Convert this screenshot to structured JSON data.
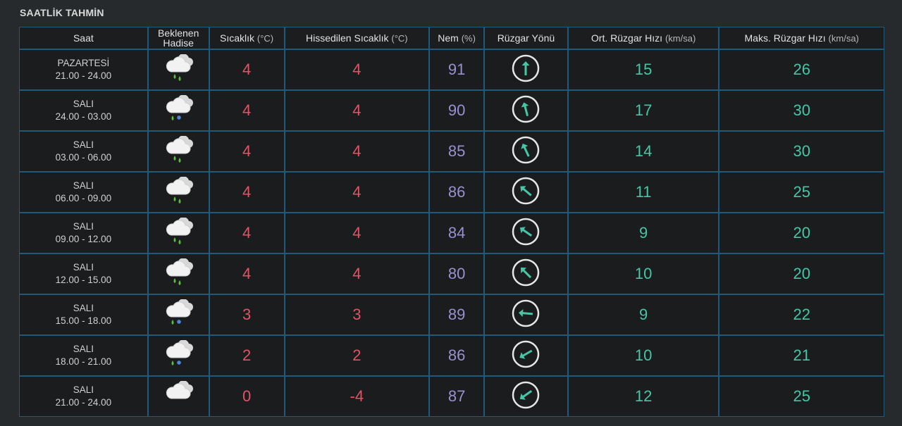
{
  "section_title": "SAATLİK TAHMİN",
  "columns": {
    "time": "Saat",
    "event_line1": "Beklenen",
    "event_line2": "Hadise",
    "temp": "Sıcaklık",
    "temp_unit": "(°C)",
    "feels": "Hissedilen Sıcaklık",
    "feels_unit": "(°C)",
    "humidity": "Nem",
    "humidity_unit": "(%)",
    "wind_dir": "Rüzgar Yönü",
    "avg_wind": "Ort. Rüzgar Hızı",
    "avg_wind_unit": "(km/sa)",
    "max_wind": "Maks. Rüzgar Hızı",
    "max_wind_unit": "(km/sa)"
  },
  "colors": {
    "temperature": "#e35366",
    "humidity": "#9a8fd1",
    "wind": "#45c7a6",
    "grid": "#1f5a78"
  },
  "rows": [
    {
      "day": "PAZARTESİ",
      "range": "21.00 - 24.00",
      "icon": "rain-cloud-icon",
      "temp": "4",
      "feels": "4",
      "humidity": "91",
      "wind_deg": 180,
      "avg": "15",
      "max": "26"
    },
    {
      "day": "SALI",
      "range": "24.00 - 03.00",
      "icon": "sleet-cloud-icon",
      "temp": "4",
      "feels": "4",
      "humidity": "90",
      "wind_deg": 165,
      "avg": "17",
      "max": "30"
    },
    {
      "day": "SALI",
      "range": "03.00 - 06.00",
      "icon": "rain-cloud-icon",
      "temp": "4",
      "feels": "4",
      "humidity": "85",
      "wind_deg": 155,
      "avg": "14",
      "max": "30"
    },
    {
      "day": "SALI",
      "range": "06.00 - 09.00",
      "icon": "rain-cloud-icon",
      "temp": "4",
      "feels": "4",
      "humidity": "86",
      "wind_deg": 130,
      "avg": "11",
      "max": "25"
    },
    {
      "day": "SALI",
      "range": "09.00 - 12.00",
      "icon": "rain-cloud-icon",
      "temp": "4",
      "feels": "4",
      "humidity": "84",
      "wind_deg": 125,
      "avg": "9",
      "max": "20"
    },
    {
      "day": "SALI",
      "range": "12.00 - 15.00",
      "icon": "rain-cloud-icon",
      "temp": "4",
      "feels": "4",
      "humidity": "80",
      "wind_deg": 135,
      "avg": "10",
      "max": "20"
    },
    {
      "day": "SALI",
      "range": "15.00 - 18.00",
      "icon": "sleet-cloud-icon",
      "temp": "3",
      "feels": "3",
      "humidity": "89",
      "wind_deg": 95,
      "avg": "9",
      "max": "22"
    },
    {
      "day": "SALI",
      "range": "18.00 - 21.00",
      "icon": "sleet-cloud-icon",
      "temp": "2",
      "feels": "2",
      "humidity": "86",
      "wind_deg": 60,
      "avg": "10",
      "max": "21"
    },
    {
      "day": "SALI",
      "range": "21.00 - 24.00",
      "icon": "cloud-icon",
      "temp": "0",
      "feels": "-4",
      "humidity": "87",
      "wind_deg": 55,
      "avg": "12",
      "max": "25"
    }
  ]
}
